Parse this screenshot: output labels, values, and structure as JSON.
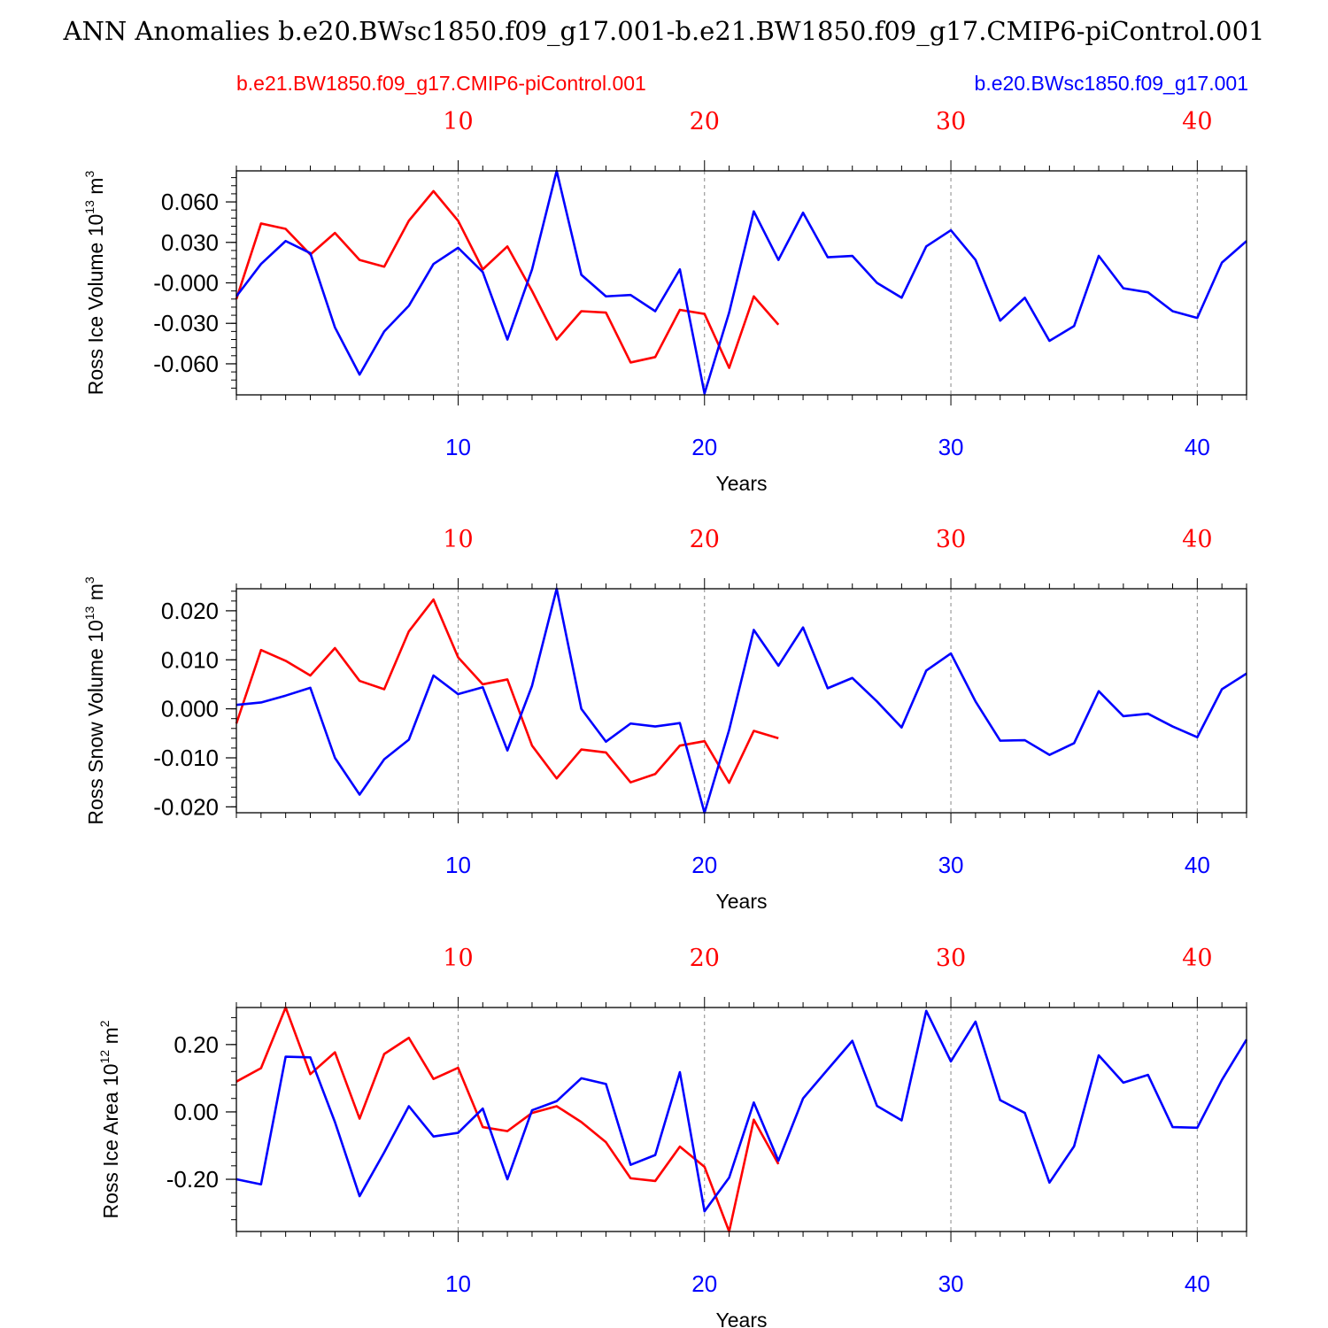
{
  "figure": {
    "title": "ANN Anomalies b.e20.BWsc1850.f09_g17.001-b.e21.BW1850.f09_g17.CMIP6-piControl.001",
    "legend_left": "b.e21.BW1850.f09_g17.CMIP6-piControl.001",
    "legend_right": "b.e20.BWsc1850.f09_g17.001",
    "colors": {
      "series_a": "#ff0000",
      "series_b": "#0000ff",
      "axis": "#000000",
      "grid": "#888888"
    }
  },
  "chart_data": [
    {
      "type": "line",
      "ylabel": "Ross Ice Volume 10",
      "ylabel_exp": "13",
      "ylabel_unit": " m",
      "ylabel_unit_exp": "3",
      "xlabel": "Years",
      "xlim": [
        1,
        42
      ],
      "ylim": [
        -0.083,
        0.083
      ],
      "yticks": [
        0.06,
        0.03,
        0.0,
        -0.03,
        -0.06
      ],
      "yticklabels": [
        "0.060",
        "0.030",
        "-0.000",
        "-0.030",
        "-0.060"
      ],
      "xticks": [
        10,
        20,
        30,
        40
      ],
      "xticklabels": [
        "10",
        "20",
        "30",
        "40"
      ],
      "series": [
        {
          "name": "b.e21.BW1850.f09_g17.CMIP6-piControl.001",
          "color": "#ff0000",
          "x": [
            1,
            2,
            3,
            4,
            5,
            6,
            7,
            8,
            9,
            10,
            11,
            12,
            13,
            14,
            15,
            16,
            17,
            18,
            19,
            20,
            21,
            22,
            23
          ],
          "values": [
            -0.012,
            0.044,
            0.04,
            0.021,
            0.037,
            0.017,
            0.012,
            0.046,
            0.068,
            0.046,
            0.01,
            0.027,
            -0.006,
            -0.042,
            -0.021,
            -0.022,
            -0.059,
            -0.055,
            -0.02,
            -0.023,
            -0.063,
            -0.01,
            -0.031
          ]
        },
        {
          "name": "b.e20.BWsc1850.f09_g17.001",
          "color": "#0000ff",
          "x": [
            1,
            2,
            3,
            4,
            5,
            6,
            7,
            8,
            9,
            10,
            11,
            12,
            13,
            14,
            15,
            16,
            17,
            18,
            19,
            20,
            21,
            22,
            23,
            24,
            25,
            26,
            27,
            28,
            29,
            30,
            31,
            32,
            33,
            34,
            35,
            36,
            37,
            38,
            39,
            40,
            41,
            42
          ],
          "values": [
            -0.01,
            0.014,
            0.031,
            0.022,
            -0.033,
            -0.068,
            -0.036,
            -0.017,
            0.014,
            0.026,
            0.008,
            -0.042,
            0.01,
            0.083,
            0.006,
            -0.01,
            -0.009,
            -0.021,
            0.01,
            -0.082,
            -0.022,
            0.053,
            0.017,
            0.052,
            0.019,
            0.02,
            0.0,
            -0.011,
            0.027,
            0.039,
            0.017,
            -0.028,
            -0.011,
            -0.043,
            -0.032,
            0.02,
            -0.004,
            -0.007,
            -0.021,
            -0.026,
            0.015,
            0.031
          ]
        }
      ]
    },
    {
      "type": "line",
      "ylabel": "Ross Snow Volume 10",
      "ylabel_exp": "13",
      "ylabel_unit": " m",
      "ylabel_unit_exp": "3",
      "xlabel": "Years",
      "xlim": [
        1,
        42
      ],
      "ylim": [
        -0.0212,
        0.0245
      ],
      "yticks": [
        0.02,
        0.01,
        0.0,
        -0.01,
        -0.02
      ],
      "yticklabels": [
        "0.020",
        "0.010",
        "0.000",
        "-0.010",
        "-0.020"
      ],
      "xticks": [
        10,
        20,
        30,
        40
      ],
      "xticklabels": [
        "10",
        "20",
        "30",
        "40"
      ],
      "series": [
        {
          "name": "b.e21.BW1850.f09_g17.CMIP6-piControl.001",
          "color": "#ff0000",
          "x": [
            1,
            2,
            3,
            4,
            5,
            6,
            7,
            8,
            9,
            10,
            11,
            12,
            13,
            14,
            15,
            16,
            17,
            18,
            19,
            20,
            21,
            22,
            23
          ],
          "values": [
            -0.003,
            0.012,
            0.0098,
            0.0068,
            0.0124,
            0.0057,
            0.004,
            0.0158,
            0.0223,
            0.0105,
            0.005,
            0.006,
            -0.0075,
            -0.0142,
            -0.0083,
            -0.0089,
            -0.015,
            -0.0133,
            -0.0075,
            -0.0066,
            -0.0151,
            -0.0045,
            -0.006
          ]
        },
        {
          "name": "b.e20.BWsc1850.f09_g17.001",
          "color": "#0000ff",
          "x": [
            1,
            2,
            3,
            4,
            5,
            6,
            7,
            8,
            9,
            10,
            11,
            12,
            13,
            14,
            15,
            16,
            17,
            18,
            19,
            20,
            21,
            22,
            23,
            24,
            25,
            26,
            27,
            28,
            29,
            30,
            31,
            32,
            33,
            34,
            35,
            36,
            37,
            38,
            39,
            40,
            41,
            42
          ],
          "values": [
            0.0008,
            0.0013,
            0.0027,
            0.0043,
            -0.01,
            -0.0175,
            -0.0103,
            -0.0063,
            0.0068,
            0.003,
            0.0044,
            -0.0085,
            0.0047,
            0.0245,
            0.0,
            -0.0067,
            -0.003,
            -0.0036,
            -0.0029,
            -0.0212,
            -0.0043,
            0.0161,
            0.0088,
            0.0166,
            0.0042,
            0.0063,
            0.0015,
            -0.0038,
            0.0078,
            0.0113,
            0.0015,
            -0.0065,
            -0.0064,
            -0.0094,
            -0.007,
            0.0036,
            -0.0015,
            -0.001,
            -0.0036,
            -0.0058,
            0.004,
            0.0072
          ]
        }
      ]
    },
    {
      "type": "line",
      "ylabel": "Ross Ice Area 10",
      "ylabel_exp": "12",
      "ylabel_unit": " m",
      "ylabel_unit_exp": "2",
      "xlabel": "Years",
      "xlim": [
        1,
        42
      ],
      "ylim": [
        -0.355,
        0.31
      ],
      "yticks": [
        0.2,
        0.0,
        -0.2
      ],
      "yticklabels": [
        "0.20",
        "0.00",
        "-0.20"
      ],
      "xticks": [
        10,
        20,
        30,
        40
      ],
      "xticklabels": [
        "10",
        "20",
        "30",
        "40"
      ],
      "series": [
        {
          "name": "b.e21.BW1850.f09_g17.CMIP6-piControl.001",
          "color": "#ff0000",
          "x": [
            1,
            2,
            3,
            4,
            5,
            6,
            7,
            8,
            9,
            10,
            11,
            12,
            13,
            14,
            15,
            16,
            17,
            18,
            19,
            20,
            21,
            22,
            23
          ],
          "values": [
            0.09,
            0.13,
            0.31,
            0.112,
            0.177,
            -0.02,
            0.172,
            0.22,
            0.098,
            0.131,
            -0.045,
            -0.057,
            -0.003,
            0.017,
            -0.03,
            -0.09,
            -0.197,
            -0.205,
            -0.103,
            -0.163,
            -0.355,
            -0.023,
            -0.155
          ]
        },
        {
          "name": "b.e20.BWsc1850.f09_g17.001",
          "color": "#0000ff",
          "x": [
            1,
            2,
            3,
            4,
            5,
            6,
            7,
            8,
            9,
            10,
            11,
            12,
            13,
            14,
            15,
            16,
            17,
            18,
            19,
            20,
            21,
            22,
            23,
            24,
            25,
            26,
            27,
            28,
            29,
            30,
            31,
            32,
            33,
            34,
            35,
            36,
            37,
            38,
            39,
            40,
            41,
            42
          ],
          "values": [
            -0.2,
            -0.215,
            0.164,
            0.162,
            -0.03,
            -0.25,
            -0.12,
            0.017,
            -0.073,
            -0.062,
            0.01,
            -0.2,
            0.005,
            0.032,
            0.1,
            0.083,
            -0.157,
            -0.128,
            0.118,
            -0.295,
            -0.195,
            0.028,
            -0.145,
            0.04,
            0.126,
            0.211,
            0.018,
            -0.025,
            0.3,
            0.15,
            0.268,
            0.035,
            -0.003,
            -0.21,
            -0.102,
            0.168,
            0.087,
            0.11,
            -0.045,
            -0.047,
            0.095,
            0.215
          ]
        }
      ]
    }
  ]
}
